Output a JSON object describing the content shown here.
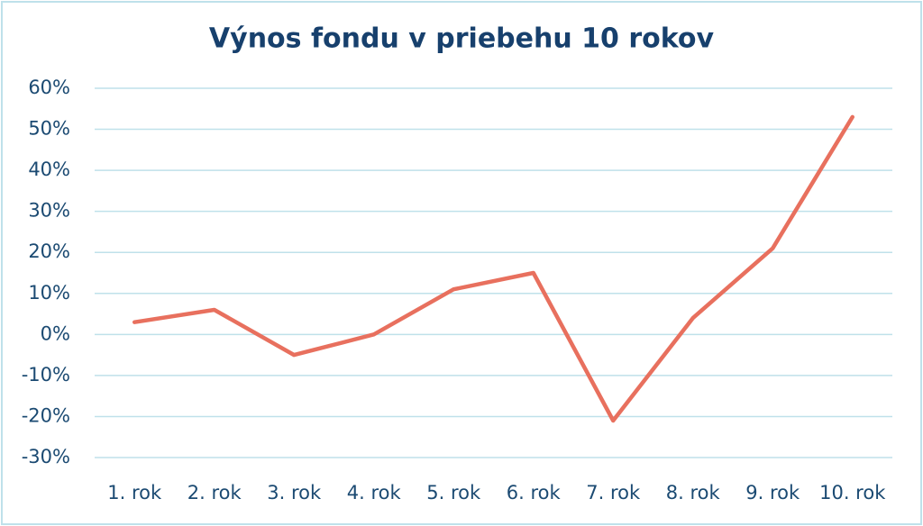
{
  "chart_data": {
    "type": "line",
    "title": "Výnos fondu v priebehu 10 rokov",
    "categories": [
      "1. rok",
      "2. rok",
      "3. rok",
      "4. rok",
      "5. rok",
      "6. rok",
      "7. rok",
      "8. rok",
      "9. rok",
      "10. rok"
    ],
    "values": [
      3,
      6,
      -5,
      0,
      11,
      15,
      -21,
      4,
      21,
      53
    ],
    "color": "#e8705e",
    "ylim": [
      -30,
      60
    ],
    "yticks": [
      {
        "value": -30,
        "label": "-30%"
      },
      {
        "value": -20,
        "label": "-20%"
      },
      {
        "value": -10,
        "label": "-10%"
      },
      {
        "value": 0,
        "label": "0%"
      },
      {
        "value": 10,
        "label": "10%"
      },
      {
        "value": 20,
        "label": "20%"
      },
      {
        "value": 30,
        "label": "30%"
      },
      {
        "value": 40,
        "label": "40%"
      },
      {
        "value": 50,
        "label": "50%"
      },
      {
        "value": 60,
        "label": "60%"
      }
    ],
    "grid": true
  }
}
